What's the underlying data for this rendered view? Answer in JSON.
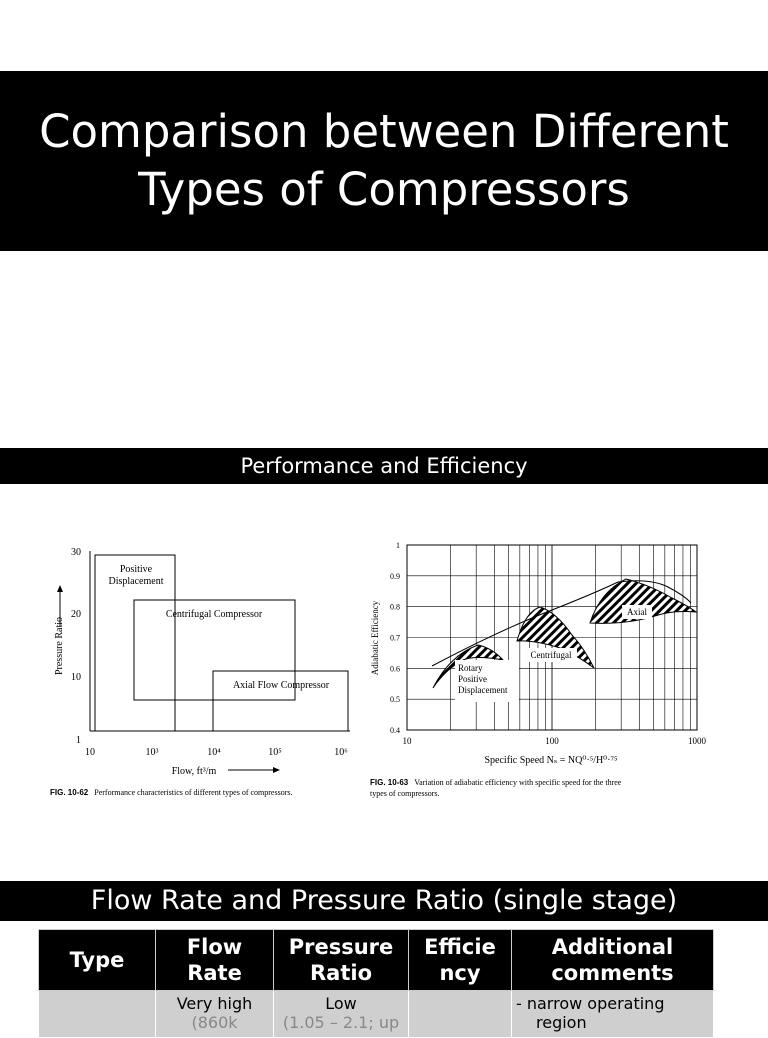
{
  "header": {
    "title": "Comparison between Different Types of Compressors"
  },
  "section1": {
    "label": "Performance and Efficiency"
  },
  "fig62": {
    "caption_num": "FIG. 10-62",
    "caption_text": "Performance characteristics of different types of compressors.",
    "ylabel": "Pressure Ratio",
    "xlabel": "Flow, ft³/m",
    "yticks": [
      "30",
      "20",
      "10",
      "1"
    ],
    "xticks": [
      "10",
      "10³",
      "10⁴",
      "10⁵",
      "10⁶"
    ],
    "regions": [
      "Positive Displacement",
      "Centrifugal Compressor",
      "Axial Flow Compressor"
    ]
  },
  "fig63": {
    "caption_num": "FIG. 10-63",
    "caption_text": "Variation of adiabatic efficiency with specific speed for the three types of compressors.",
    "ylabel": "Adiabatic Efficiency",
    "xlabel": "Specific Speed Nₛ = NQ⁰·⁵/H⁰·⁷⁵",
    "yticks": [
      "1",
      "0.9",
      "0.8",
      "0.7",
      "0.6",
      "0.5",
      "0.4"
    ],
    "xticks": [
      "10",
      "100",
      "1000"
    ],
    "regions": [
      "Rotary Positive Displacement",
      "Centrifugal",
      "Axial"
    ]
  },
  "chart_data": [
    {
      "type": "other",
      "title": "",
      "xlabel": "Flow, ft³/m",
      "ylabel": "Pressure Ratio",
      "x_scale": "log",
      "xlim": [
        10,
        1000000
      ],
      "ylim": [
        1,
        30
      ],
      "regions": [
        {
          "name": "Positive Displacement",
          "x": [
            10,
            2000
          ],
          "y": [
            1,
            29
          ]
        },
        {
          "name": "Centrifugal Compressor",
          "x": [
            300,
            200000
          ],
          "y": [
            6,
            22
          ]
        },
        {
          "name": "Axial Flow Compressor",
          "x": [
            10000,
            1000000
          ],
          "y": [
            1,
            11
          ]
        }
      ]
    },
    {
      "type": "other",
      "title": "",
      "xlabel": "Specific Speed Nₛ = NQ⁰·⁵/H⁰·⁷⁵",
      "ylabel": "Adiabatic Efficiency",
      "x_scale": "log",
      "xlim": [
        10,
        1000
      ],
      "ylim": [
        0.4,
        1
      ],
      "envelope": {
        "x": [
          18,
          30,
          60,
          100,
          200,
          300,
          500,
          900
        ],
        "y": [
          0.62,
          0.7,
          0.78,
          0.82,
          0.87,
          0.885,
          0.87,
          0.82
        ]
      },
      "regions": [
        {
          "name": "Rotary Positive Displacement",
          "x": [
            17,
            42
          ],
          "y_range": [
            0.55,
            0.68
          ]
        },
        {
          "name": "Centrifugal",
          "x": [
            65,
            150
          ],
          "y_range": [
            0.6,
            0.8
          ]
        },
        {
          "name": "Axial",
          "x": [
            190,
            900
          ],
          "y_range": [
            0.78,
            0.89
          ]
        }
      ]
    }
  ],
  "section2": {
    "label": "Flow Rate and Pressure Ratio (single stage)"
  },
  "table": {
    "headers": [
      {
        "line1": "Type",
        "line2": ""
      },
      {
        "line1": "Flow",
        "line2": "Rate"
      },
      {
        "line1": "Pressure",
        "line2": "Ratio"
      },
      {
        "line1": "Efficie",
        "line2": "ncy"
      },
      {
        "line1": "Additional",
        "line2": "comments"
      }
    ],
    "row": {
      "type": "",
      "flow_rate": "Very high",
      "flow_rate_detail": "(860k",
      "pressure_ratio": "Low",
      "pressure_ratio_detail": "(1.05 – 2.1; up",
      "efficiency": "",
      "comment_1": "-  narrow operating",
      "comment_2": "region"
    }
  }
}
